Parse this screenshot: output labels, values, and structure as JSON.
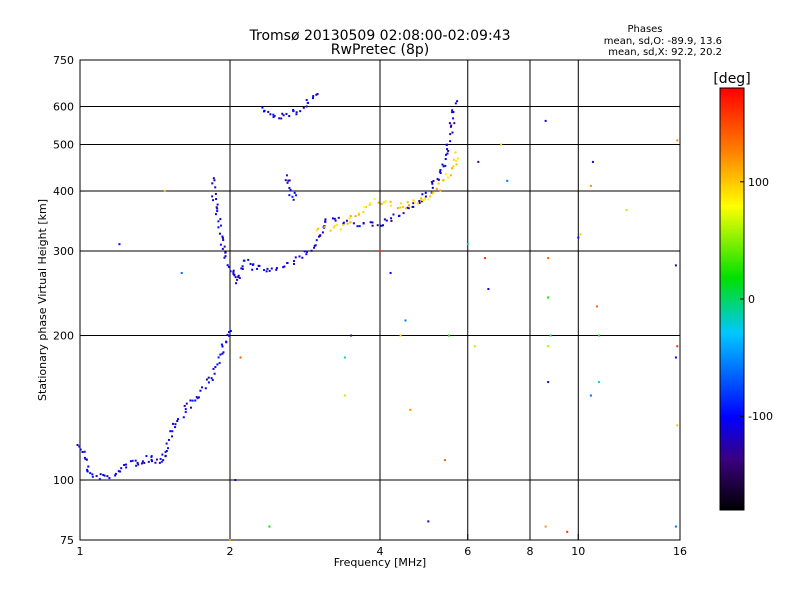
{
  "chart_data": {
    "type": "scatter",
    "title": "Tromsø 20130509 02:08:00-02:09:43",
    "subtitle": "RwPretec (8p)",
    "xlabel": "Frequency [MHz]",
    "ylabel": "Stationary phase Virtual Height [km]",
    "x_scale": "log",
    "y_scale": "log",
    "xlim": [
      1,
      16
    ],
    "ylim": [
      75,
      750
    ],
    "x_ticks": [
      1,
      2,
      4,
      6,
      8,
      10,
      16
    ],
    "y_ticks": [
      75,
      100,
      200,
      300,
      400,
      500,
      600,
      750
    ],
    "grid_x": [
      2,
      4,
      6,
      8,
      10
    ],
    "grid_y": [
      100,
      200,
      300,
      400,
      500,
      600
    ],
    "grid": true,
    "phase_legend": {
      "heading": "Phases",
      "line1": "mean, sd,O: -89.9, 13.6",
      "line2": "mean, sd,X:  92.2, 20.2"
    },
    "colorbar": {
      "label": "[deg]",
      "ticks": [
        100,
        0,
        -100
      ],
      "range": [
        -180,
        180
      ],
      "colormap": "rainbow"
    },
    "trace_o_lower": {
      "points": [
        [
          1.0,
          120
        ],
        [
          1.04,
          103
        ],
        [
          1.1,
          101
        ],
        [
          1.18,
          103
        ],
        [
          1.25,
          108
        ],
        [
          1.32,
          109
        ],
        [
          1.38,
          111
        ],
        [
          1.44,
          110
        ],
        [
          1.48,
          113
        ],
        [
          1.52,
          125
        ],
        [
          1.6,
          137
        ],
        [
          1.68,
          145
        ],
        [
          1.76,
          152
        ],
        [
          1.84,
          165
        ],
        [
          1.9,
          180
        ],
        [
          1.96,
          195
        ],
        [
          2.0,
          205
        ]
      ],
      "phase": -110
    },
    "trace_o_cusp": {
      "points": [
        [
          1.84,
          420
        ],
        [
          1.88,
          360
        ],
        [
          1.92,
          320
        ],
        [
          1.96,
          290
        ],
        [
          2.02,
          270
        ],
        [
          2.08,
          260
        ],
        [
          2.15,
          290
        ],
        [
          2.25,
          275
        ],
        [
          2.4,
          275
        ],
        [
          2.6,
          280
        ],
        [
          2.8,
          290
        ],
        [
          2.95,
          310
        ],
        [
          3.05,
          330
        ],
        [
          3.1,
          350
        ]
      ],
      "phase": -110
    },
    "trace_o_upper": {
      "points": [
        [
          3.1,
          350
        ],
        [
          3.4,
          345
        ],
        [
          3.8,
          340
        ],
        [
          4.1,
          345
        ],
        [
          4.4,
          360
        ],
        [
          4.7,
          375
        ],
        [
          5.0,
          395
        ],
        [
          5.2,
          420
        ],
        [
          5.35,
          455
        ],
        [
          5.5,
          500
        ],
        [
          5.6,
          560
        ],
        [
          5.7,
          620
        ]
      ],
      "phase": -115
    },
    "trace_x_upper": {
      "points": [
        [
          3.0,
          330
        ],
        [
          3.3,
          335
        ],
        [
          3.6,
          360
        ],
        [
          3.9,
          380
        ],
        [
          4.2,
          375
        ],
        [
          4.5,
          370
        ],
        [
          4.8,
          380
        ],
        [
          5.1,
          395
        ],
        [
          5.4,
          420
        ],
        [
          5.6,
          450
        ],
        [
          5.75,
          480
        ]
      ],
      "phase": 100
    },
    "trace_patch_high": {
      "points": [
        [
          2.3,
          600
        ],
        [
          2.45,
          570
        ],
        [
          2.6,
          575
        ],
        [
          2.75,
          590
        ],
        [
          2.9,
          620
        ],
        [
          3.0,
          650
        ]
      ],
      "phase": -110
    },
    "trace_spike": {
      "points": [
        [
          2.6,
          430
        ],
        [
          2.65,
          400
        ],
        [
          2.7,
          385
        ]
      ],
      "phase": -110
    },
    "scattered_points": [
      [
        1.2,
        310
      ],
      [
        1.48,
        400
      ],
      [
        1.6,
        270
      ],
      [
        2.0,
        75
      ],
      [
        2.05,
        100
      ],
      [
        2.1,
        180
      ],
      [
        2.4,
        80
      ],
      [
        3.4,
        180
      ],
      [
        3.4,
        150
      ],
      [
        3.5,
        200
      ],
      [
        4.0,
        300
      ],
      [
        4.2,
        270
      ],
      [
        4.4,
        200
      ],
      [
        4.5,
        215
      ],
      [
        4.6,
        140
      ],
      [
        5.0,
        82
      ],
      [
        5.4,
        110
      ],
      [
        5.5,
        200
      ],
      [
        6.0,
        310
      ],
      [
        6.2,
        190
      ],
      [
        6.3,
        460
      ],
      [
        6.5,
        290
      ],
      [
        6.6,
        250
      ],
      [
        7.0,
        500
      ],
      [
        7.2,
        420
      ],
      [
        8.6,
        80
      ],
      [
        8.6,
        560
      ],
      [
        8.7,
        290
      ],
      [
        8.7,
        240
      ],
      [
        8.8,
        200
      ],
      [
        8.7,
        190
      ],
      [
        8.7,
        160
      ],
      [
        9.5,
        78
      ],
      [
        10.0,
        320
      ],
      [
        10.1,
        325
      ],
      [
        10.6,
        150
      ],
      [
        10.6,
        410
      ],
      [
        10.7,
        460
      ],
      [
        10.9,
        230
      ],
      [
        11.0,
        200
      ],
      [
        11.0,
        160
      ],
      [
        12.5,
        365
      ],
      [
        15.7,
        280
      ],
      [
        15.8,
        190
      ],
      [
        15.7,
        180
      ],
      [
        15.8,
        130
      ],
      [
        15.7,
        80
      ],
      [
        15.8,
        510
      ]
    ]
  }
}
